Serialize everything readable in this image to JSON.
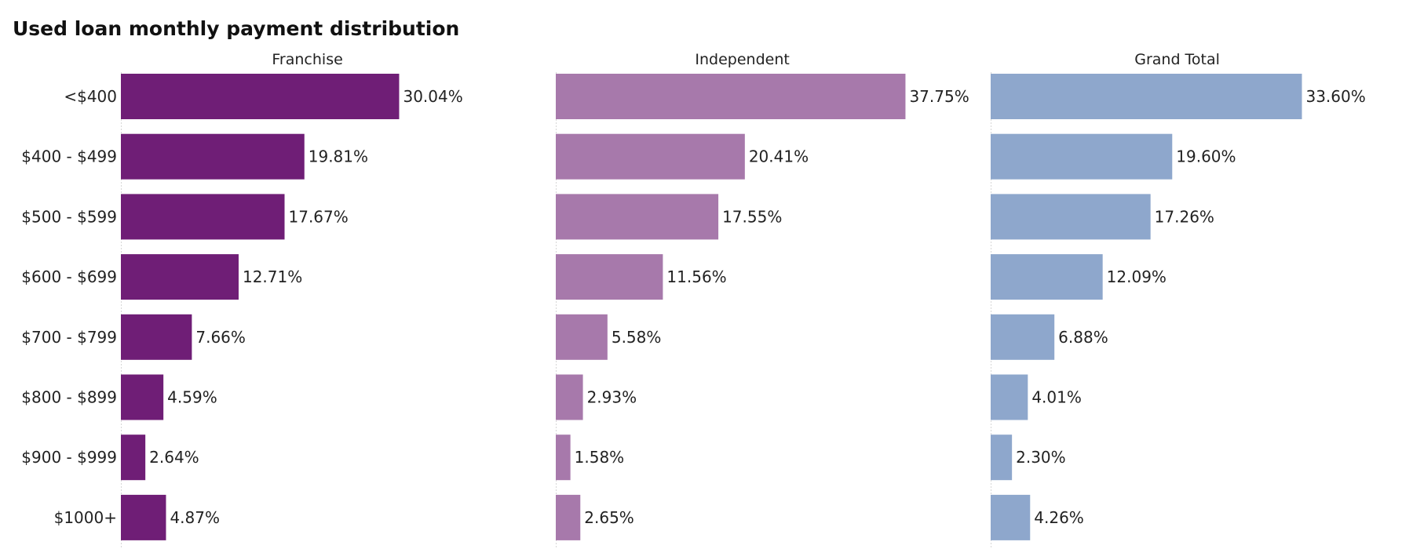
{
  "chart_data": {
    "type": "bar",
    "orientation": "horizontal",
    "title": "Used loan monthly payment distribution",
    "categories": [
      "<$400",
      "$400 - $499",
      "$500 - $599",
      "$600 - $699",
      "$700 - $799",
      "$800 - $899",
      "$900 - $999",
      "$1000+"
    ],
    "value_format": "percent_2dp",
    "xlim": [
      0,
      45
    ],
    "series": [
      {
        "name": "Franchise",
        "color": "#6f1e76",
        "values": [
          30.04,
          19.81,
          17.67,
          12.71,
          7.66,
          4.59,
          2.64,
          4.87
        ]
      },
      {
        "name": "Independent",
        "color": "#a779ab",
        "values": [
          37.75,
          20.41,
          17.55,
          11.56,
          5.58,
          2.93,
          1.58,
          2.65
        ]
      },
      {
        "name": "Grand Total",
        "color": "#8ea7cc",
        "values": [
          33.6,
          19.6,
          17.26,
          12.09,
          6.88,
          4.01,
          2.3,
          4.26
        ]
      }
    ],
    "grid": false,
    "legend": "none"
  }
}
